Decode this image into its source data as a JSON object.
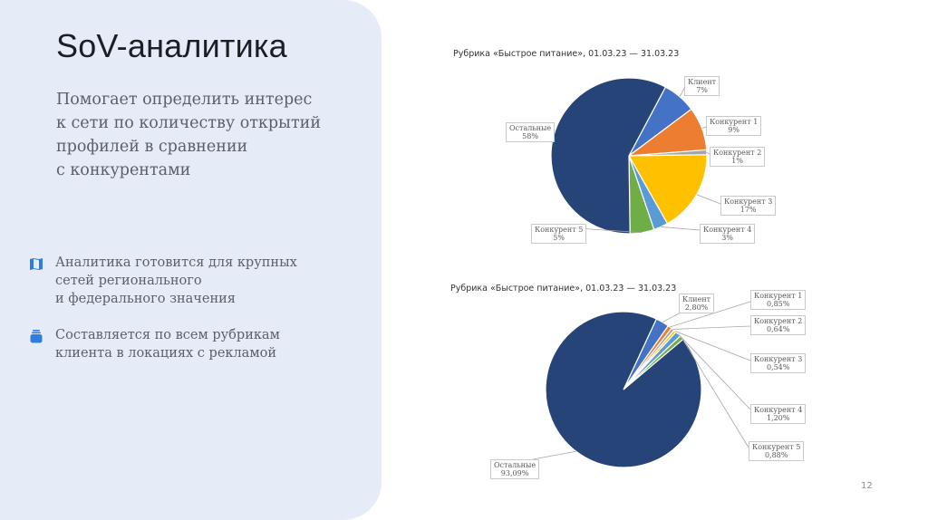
{
  "slide": {
    "title": "SoV-аналитика",
    "subtitle": "Помогает определить интерес\nк сети по количеству открытий\nпрофилей в сравнении\nс конкурентами",
    "bullets": [
      {
        "icon": "map-icon",
        "text": "Аналитика готовится для крупных\nсетей регионального\nи федерального значения"
      },
      {
        "icon": "stack-icon",
        "text": "Составляется по всем рубрикам\nклиента в локациях с рекламой"
      }
    ],
    "page_number": "12",
    "colors": {
      "panel_bg": "#e6ecf7",
      "accent_icon": "#2f7de1",
      "title": "#1b1e24",
      "body_text": "#5b5f68"
    }
  },
  "chart_data": [
    {
      "type": "pie",
      "title": "Рубрика «Быстрое питание», 01.03.23 — 31.03.23",
      "categories": [
        "Клиент",
        "Конкурент 1",
        "Конкурент 2",
        "Конкурент 3",
        "Конкурент 4",
        "Конкурент 5",
        "Остальные"
      ],
      "values": [
        7,
        9,
        1,
        17,
        3,
        5,
        58
      ],
      "value_labels": [
        "7%",
        "9%",
        "1%",
        "17%",
        "3%",
        "5%",
        "58%"
      ],
      "colors": [
        "#4472c4",
        "#ed7d31",
        "#a5a5a5",
        "#ffc000",
        "#5b9bd5",
        "#70ad47",
        "#264478"
      ],
      "start_angle_deg": 28,
      "legend": "data-labels"
    },
    {
      "type": "pie",
      "title": "Рубрика «Быстрое питание», 01.03.23 — 31.03.23",
      "categories": [
        "Клиент",
        "Конкурент 1",
        "Конкурент 2",
        "Конкурент 3",
        "Конкурент 4",
        "Конкурент 5",
        "Остальные"
      ],
      "values": [
        2.8,
        0.85,
        0.64,
        0.54,
        1.2,
        0.88,
        93.09
      ],
      "value_labels": [
        "2,80%",
        "0,85%",
        "0,64%",
        "0,54%",
        "1,20%",
        "0,88%",
        "93,09%"
      ],
      "colors": [
        "#4472c4",
        "#ed7d31",
        "#a5a5a5",
        "#ffc000",
        "#5b9bd5",
        "#70ad47",
        "#264478"
      ],
      "start_angle_deg": 25,
      "legend": "data-labels"
    }
  ]
}
